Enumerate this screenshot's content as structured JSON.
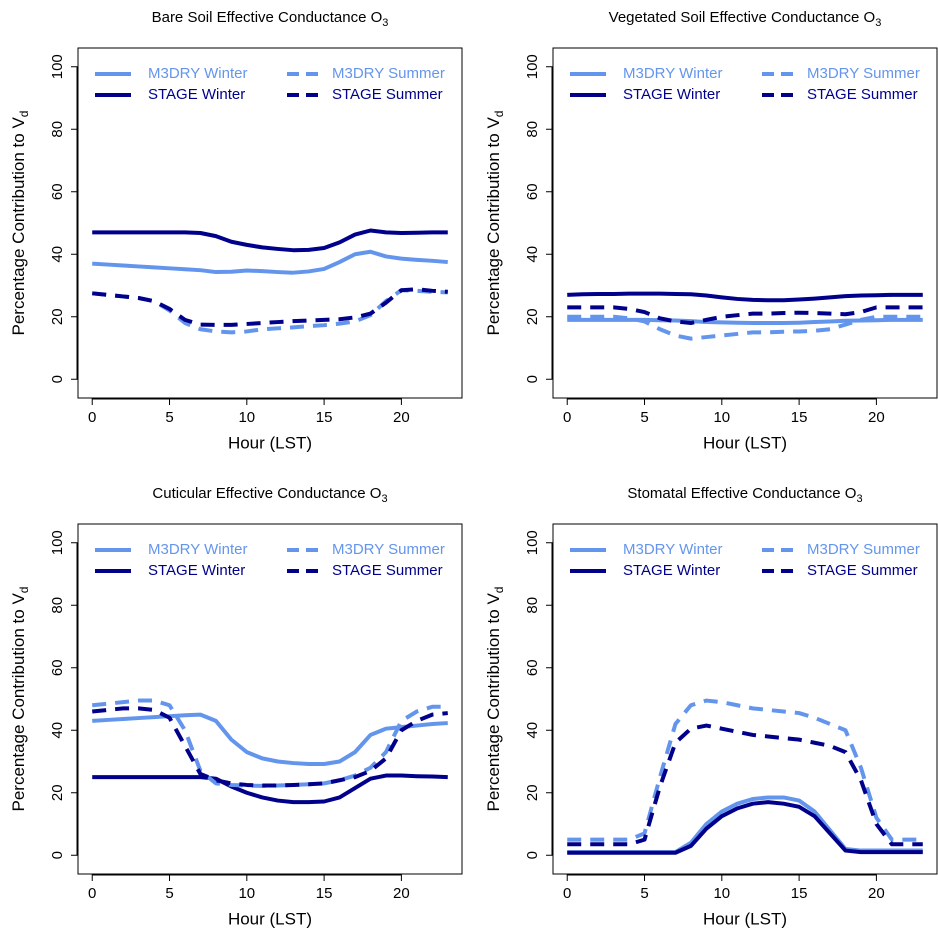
{
  "chart_data": [
    {
      "type": "line",
      "title": {
        "text": "Bare Soil Effective Conductance O",
        "subscript": "3"
      },
      "xlabel": "Hour (LST)",
      "ylabel": {
        "text": "Percentage Contribution to V",
        "subscript": "d"
      },
      "x": [
        0,
        1,
        2,
        3,
        4,
        5,
        6,
        7,
        8,
        9,
        10,
        11,
        12,
        13,
        14,
        15,
        16,
        17,
        18,
        19,
        20,
        21,
        22,
        23
      ],
      "xlim": [
        -0.92,
        23.92
      ],
      "xticks": [
        0,
        5,
        10,
        15,
        20
      ],
      "ylim": [
        -6,
        106
      ],
      "yticks": [
        0,
        20,
        40,
        60,
        80,
        100
      ],
      "series": [
        {
          "name": "M3DRY Winter",
          "color": "#6495ed",
          "dashed": false,
          "values": [
            37,
            36.7,
            36.4,
            36.1,
            35.8,
            35.5,
            35.2,
            34.9,
            34.3,
            34.4,
            34.8,
            34.6,
            34.3,
            34.1,
            34.5,
            35.3,
            37.5,
            40,
            40.8,
            39.3,
            38.6,
            38.2,
            37.9,
            37.5
          ]
        },
        {
          "name": "STAGE Winter",
          "color": "#00008b",
          "dashed": false,
          "values": [
            47,
            47,
            47,
            47,
            47,
            47,
            47,
            46.8,
            45.8,
            44,
            43,
            42.2,
            41.7,
            41.3,
            41.4,
            42,
            43.8,
            46.3,
            47.6,
            47,
            46.8,
            46.9,
            47,
            47
          ]
        },
        {
          "name": "M3DRY Summer",
          "color": "#6495ed",
          "dashed": true,
          "values": [
            27.5,
            27,
            26.5,
            26,
            25,
            22,
            18,
            16,
            15.3,
            15,
            15.3,
            16,
            16.3,
            16.6,
            17,
            17.3,
            17.8,
            18.5,
            20.5,
            25,
            28.5,
            28.3,
            28,
            27.8
          ]
        },
        {
          "name": "STAGE Summer",
          "color": "#00008b",
          "dashed": true,
          "values": [
            27.5,
            27,
            26.5,
            26,
            25,
            22.5,
            19,
            17.5,
            17.4,
            17.4,
            17.7,
            18,
            18.3,
            18.6,
            18.8,
            19,
            19.2,
            19.8,
            21,
            24.5,
            28.5,
            28.8,
            28.3,
            28
          ]
        }
      ]
    },
    {
      "type": "line",
      "title": {
        "text": "Vegetated Soil Effective Conductance O",
        "subscript": "3"
      },
      "xlabel": "Hour (LST)",
      "ylabel": {
        "text": "Percentage Contribution to V",
        "subscript": "d"
      },
      "x": [
        0,
        1,
        2,
        3,
        4,
        5,
        6,
        7,
        8,
        9,
        10,
        11,
        12,
        13,
        14,
        15,
        16,
        17,
        18,
        19,
        20,
        21,
        22,
        23
      ],
      "xlim": [
        -0.92,
        23.92
      ],
      "xticks": [
        0,
        5,
        10,
        15,
        20
      ],
      "ylim": [
        -6,
        106
      ],
      "yticks": [
        0,
        20,
        40,
        60,
        80,
        100
      ],
      "series": [
        {
          "name": "M3DRY Winter",
          "color": "#6495ed",
          "dashed": false,
          "values": [
            19,
            19,
            19,
            19,
            19,
            19,
            18.9,
            18.8,
            18.6,
            18.3,
            18.2,
            18.1,
            18,
            18,
            18,
            18.1,
            18.3,
            18.5,
            18.7,
            18.8,
            18.9,
            19,
            19,
            19
          ]
        },
        {
          "name": "STAGE Winter",
          "color": "#00008b",
          "dashed": false,
          "values": [
            27,
            27.2,
            27.3,
            27.3,
            27.4,
            27.4,
            27.4,
            27.3,
            27.2,
            26.8,
            26.2,
            25.7,
            25.4,
            25.3,
            25.3,
            25.5,
            25.8,
            26.2,
            26.6,
            26.8,
            26.9,
            27,
            27,
            27
          ]
        },
        {
          "name": "M3DRY Summer",
          "color": "#6495ed",
          "dashed": true,
          "values": [
            20,
            20,
            20,
            20,
            19.5,
            18.5,
            16,
            14,
            13,
            13.5,
            14,
            14.5,
            15,
            15,
            15.2,
            15.3,
            15.5,
            16,
            17.5,
            19,
            20,
            20,
            20,
            20
          ]
        },
        {
          "name": "STAGE Summer",
          "color": "#00008b",
          "dashed": true,
          "values": [
            23,
            23,
            23,
            23,
            22.5,
            21.5,
            19.5,
            18.5,
            18,
            19,
            20,
            20.5,
            21,
            21,
            21.2,
            21.3,
            21.2,
            21,
            20.8,
            21.5,
            23,
            23,
            23,
            23
          ]
        }
      ]
    },
    {
      "type": "line",
      "title": {
        "text": "Cuticular Effective Conductance O",
        "subscript": "3"
      },
      "xlabel": "Hour (LST)",
      "ylabel": {
        "text": "Percentage Contribution to V",
        "subscript": "d"
      },
      "x": [
        0,
        1,
        2,
        3,
        4,
        5,
        6,
        7,
        8,
        9,
        10,
        11,
        12,
        13,
        14,
        15,
        16,
        17,
        18,
        19,
        20,
        21,
        22,
        23
      ],
      "xlim": [
        -0.92,
        23.92
      ],
      "xticks": [
        0,
        5,
        10,
        15,
        20
      ],
      "ylim": [
        -6,
        106
      ],
      "yticks": [
        0,
        20,
        40,
        60,
        80,
        100
      ],
      "series": [
        {
          "name": "M3DRY Winter",
          "color": "#6495ed",
          "dashed": false,
          "values": [
            43,
            43.3,
            43.6,
            43.9,
            44.2,
            44.5,
            44.8,
            45,
            43,
            37,
            33,
            31,
            30,
            29.5,
            29.2,
            29.2,
            30,
            33,
            38.5,
            40.5,
            41,
            41.5,
            42,
            42.3
          ]
        },
        {
          "name": "STAGE Winter",
          "color": "#00008b",
          "dashed": false,
          "values": [
            25,
            25,
            25,
            25,
            25,
            25,
            25,
            25,
            24.5,
            22,
            20,
            18.5,
            17.5,
            17,
            17,
            17.2,
            18.5,
            21.5,
            24.5,
            25.5,
            25.5,
            25.3,
            25.2,
            25
          ]
        },
        {
          "name": "M3DRY Summer",
          "color": "#6495ed",
          "dashed": true,
          "values": [
            48,
            48.5,
            49,
            49.5,
            49.5,
            48,
            40,
            27,
            23,
            22.5,
            22.3,
            22.2,
            22.3,
            22.5,
            22.7,
            23,
            24,
            25.5,
            28,
            33,
            43,
            46,
            47.5,
            47.5
          ]
        },
        {
          "name": "STAGE Summer",
          "color": "#00008b",
          "dashed": true,
          "values": [
            46,
            46.5,
            47,
            47,
            46.5,
            44,
            35,
            26,
            24,
            23,
            22.5,
            22.3,
            22.3,
            22.5,
            22.7,
            23,
            24,
            25,
            27,
            31,
            40,
            43,
            45,
            45.5
          ]
        }
      ]
    },
    {
      "type": "line",
      "title": {
        "text": "Stomatal Effective Conductance O",
        "subscript": "3"
      },
      "xlabel": "Hour (LST)",
      "ylabel": {
        "text": "Percentage Contribution to V",
        "subscript": "d"
      },
      "x": [
        0,
        1,
        2,
        3,
        4,
        5,
        6,
        7,
        8,
        9,
        10,
        11,
        12,
        13,
        14,
        15,
        16,
        17,
        18,
        19,
        20,
        21,
        22,
        23
      ],
      "xlim": [
        -0.92,
        23.92
      ],
      "xticks": [
        0,
        5,
        10,
        15,
        20
      ],
      "ylim": [
        -6,
        106
      ],
      "yticks": [
        0,
        20,
        40,
        60,
        80,
        100
      ],
      "series": [
        {
          "name": "M3DRY Winter",
          "color": "#6495ed",
          "dashed": false,
          "values": [
            1,
            1,
            1,
            1,
            1,
            1,
            1,
            1,
            4,
            10,
            14,
            16.5,
            18,
            18.5,
            18.5,
            17.5,
            14,
            8,
            2,
            1.5,
            1.5,
            1.5,
            1.5,
            1.5
          ]
        },
        {
          "name": "STAGE Winter",
          "color": "#00008b",
          "dashed": false,
          "values": [
            0.8,
            0.8,
            0.8,
            0.8,
            0.8,
            0.8,
            0.8,
            0.8,
            3,
            8.5,
            12.5,
            15,
            16.5,
            17,
            16.5,
            15.5,
            12.5,
            7,
            1.5,
            1,
            1,
            1,
            1,
            1
          ]
        },
        {
          "name": "M3DRY Summer",
          "color": "#6495ed",
          "dashed": true,
          "values": [
            5,
            5,
            5,
            5,
            5,
            7,
            25,
            42,
            48,
            49.5,
            49,
            48,
            47,
            46.5,
            46,
            45.5,
            44,
            42,
            40,
            28,
            12,
            5,
            5,
            5
          ]
        },
        {
          "name": "STAGE Summer",
          "color": "#00008b",
          "dashed": true,
          "values": [
            3.5,
            3.5,
            3.5,
            3.5,
            3.5,
            5,
            22,
            36,
            40.5,
            41.5,
            40.5,
            39.5,
            38.5,
            38,
            37.5,
            37,
            36,
            35,
            33,
            24,
            10,
            3.5,
            3.5,
            3.5
          ]
        }
      ]
    }
  ]
}
